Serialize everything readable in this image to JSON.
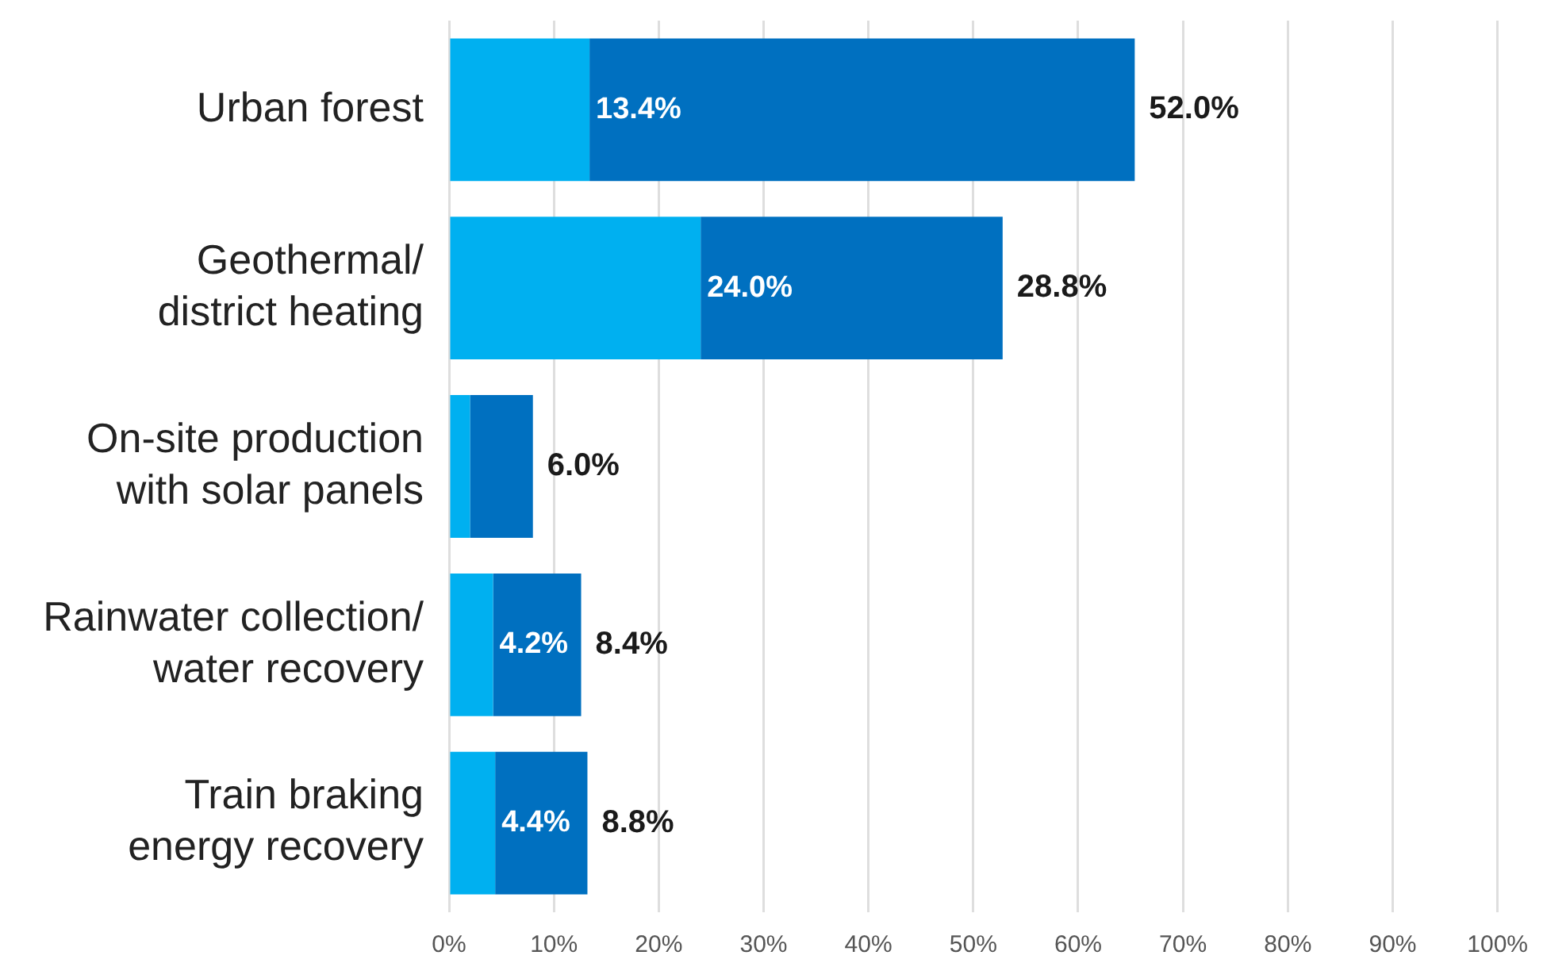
{
  "chart_data": {
    "type": "bar",
    "orientation": "horizontal",
    "stacked": true,
    "categories": [
      "Urban forest",
      "Geothermal/ district heating",
      "On-site production with solar panels",
      "Rainwater collection/ water recovery",
      "Train braking energy recovery"
    ],
    "series": [
      {
        "color": "#00b0f0",
        "values": [
          13.4,
          24.0,
          2.0,
          4.2,
          4.4
        ],
        "value_labels": [
          "13.4%",
          "24.0%",
          null,
          "4.2%",
          "4.4%"
        ]
      },
      {
        "color": "#0070c0",
        "values": [
          52.0,
          28.8,
          6.0,
          8.4,
          8.8
        ],
        "value_labels": [
          "52.0%",
          "28.8%",
          "6.0%",
          "8.4%",
          "8.8%"
        ]
      }
    ],
    "xlim": [
      0,
      100
    ],
    "xticks": [
      {
        "value": 0,
        "label": "0%"
      },
      {
        "value": 10,
        "label": "10%"
      },
      {
        "value": 20,
        "label": "20%"
      },
      {
        "value": 30,
        "label": "30%"
      },
      {
        "value": 40,
        "label": "40%"
      },
      {
        "value": 50,
        "label": "50%"
      },
      {
        "value": 60,
        "label": "60%"
      },
      {
        "value": 70,
        "label": "70%"
      },
      {
        "value": 80,
        "label": "80%"
      },
      {
        "value": 90,
        "label": "90%"
      },
      {
        "value": 100,
        "label": "100%"
      }
    ],
    "grid": "x",
    "legend": false
  }
}
